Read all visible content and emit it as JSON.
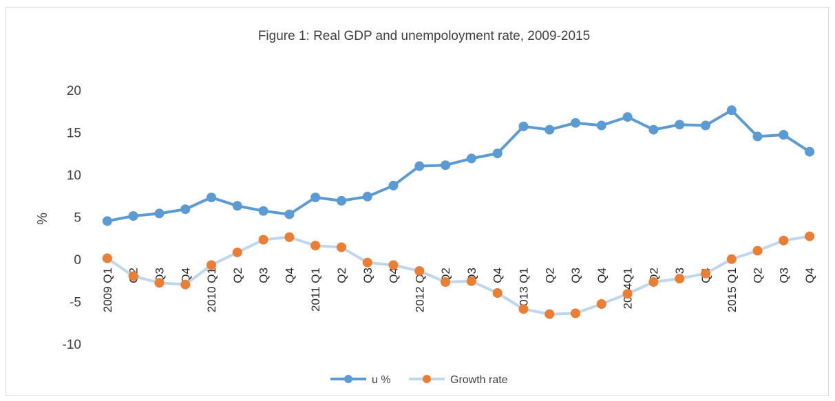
{
  "chart_data": {
    "type": "line",
    "title": "Figure 1: Real GDP and unempoloyment rate, 2009-2015",
    "xlabel": "",
    "ylabel": "%",
    "ylim": [
      -10,
      20
    ],
    "yticks": [
      "20",
      "15",
      "10",
      "5",
      "0",
      "-5",
      "-10"
    ],
    "categories": [
      "2009 Q1",
      "Q2",
      "Q3",
      "Q4",
      "2010 Q1",
      "Q2",
      "Q3",
      "Q4",
      "2011 Q1",
      "Q2",
      "Q3",
      "Q4",
      "2012 Q1",
      "Q2",
      "Q3",
      "Q4",
      "2013 Q1",
      "Q2",
      "Q3",
      "Q4",
      "2014Q1",
      "Q2",
      "Q3",
      "Q4",
      "2015 Q1",
      "Q2",
      "Q3",
      "Q4"
    ],
    "series": [
      {
        "name": "u %",
        "line_color": "#5b9bd5",
        "marker_color": "#5b9bd5",
        "values": [
          4.6,
          5.2,
          5.5,
          6.0,
          7.4,
          6.4,
          5.8,
          5.4,
          7.4,
          7.0,
          7.5,
          8.8,
          11.1,
          11.2,
          12.0,
          12.6,
          15.8,
          15.4,
          16.2,
          15.9,
          16.9,
          15.4,
          16.0,
          15.9,
          17.7,
          14.6,
          14.8,
          12.8
        ]
      },
      {
        "name": "Growth rate",
        "line_color": "#bdd7ee",
        "marker_color": "#ed7d31",
        "values": [
          0.2,
          -1.9,
          -2.7,
          -2.9,
          -0.6,
          0.9,
          2.4,
          2.7,
          1.7,
          1.5,
          -0.3,
          -0.6,
          -1.3,
          -2.6,
          -2.5,
          -3.9,
          -5.8,
          -6.4,
          -6.3,
          -5.2,
          -4.0,
          -2.6,
          -2.2,
          -1.6,
          0.1,
          1.1,
          2.3,
          2.8
        ]
      }
    ],
    "legend_position": "bottom",
    "grid": false
  }
}
